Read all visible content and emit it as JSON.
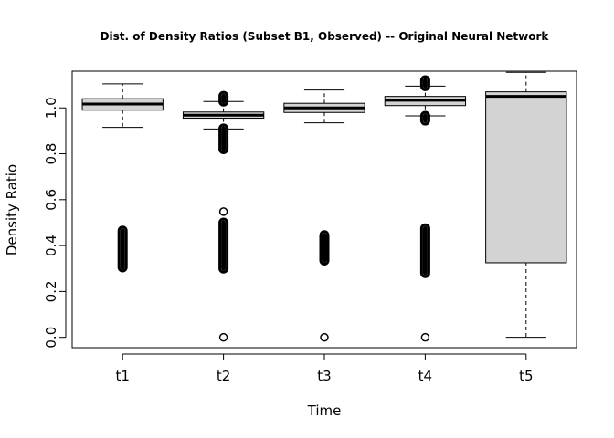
{
  "chart_data": {
    "type": "box",
    "title": "Dist. of Density Ratios (Subset B1, Observed) -- Original Neural Network",
    "xlabel": "Time",
    "ylabel": "Density Ratio",
    "ylim": [
      -0.045,
      1.16
    ],
    "yticks": [
      "0.0",
      "0.2",
      "0.4",
      "0.6",
      "0.8",
      "1.0"
    ],
    "categories": [
      "t1",
      "t2",
      "t3",
      "t4",
      "t5"
    ],
    "box_fill": "#d3d3d3",
    "boxes": [
      {
        "label": "t1",
        "whisker_low": 0.915,
        "q1": 0.99,
        "median": 1.017,
        "q3": 1.04,
        "whisker_high": 1.105,
        "outlier_bands": [
          [
            0.305,
            0.465
          ]
        ],
        "outliers": []
      },
      {
        "label": "t2",
        "whisker_low": 0.908,
        "q1": 0.955,
        "median": 0.968,
        "q3": 0.982,
        "whisker_high": 1.028,
        "outlier_bands": [
          [
            0.82,
            0.91
          ],
          [
            1.028,
            1.052
          ],
          [
            0.3,
            0.5
          ]
        ],
        "outliers": [
          0.548,
          0.0
        ]
      },
      {
        "label": "t3",
        "whisker_low": 0.935,
        "q1": 0.98,
        "median": 1.0,
        "q3": 1.02,
        "whisker_high": 1.078,
        "outlier_bands": [
          [
            0.335,
            0.445
          ]
        ],
        "outliers": [
          0.0
        ]
      },
      {
        "label": "t4",
        "whisker_low": 0.965,
        "q1": 1.01,
        "median": 1.033,
        "q3": 1.05,
        "whisker_high": 1.095,
        "outlier_bands": [
          [
            0.945,
            0.965
          ],
          [
            1.095,
            1.12
          ],
          [
            0.28,
            0.475
          ]
        ],
        "outliers": [
          0.0
        ]
      },
      {
        "label": "t5",
        "whisker_low": 0.0,
        "q1": 0.325,
        "median": 1.05,
        "q3": 1.07,
        "whisker_high": 1.155,
        "outlier_bands": [],
        "outliers": []
      }
    ]
  }
}
